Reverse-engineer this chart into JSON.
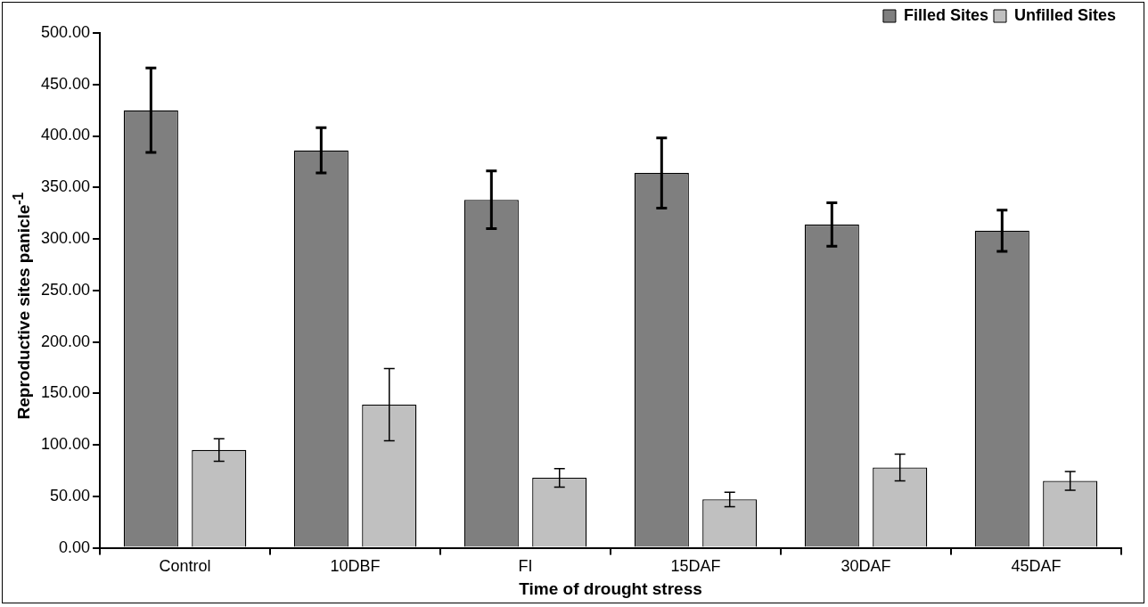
{
  "chart_data": {
    "type": "bar",
    "xlabel": "Time of drought stress",
    "ylabel": "Reproductive sites panicle$^{-1}$",
    "categories": [
      "Control",
      "10DBF",
      "FI",
      "15DAF",
      "30DAF",
      "45DAF"
    ],
    "series": [
      {
        "name": "Filled Sites",
        "color": "#7f7f7f",
        "values": [
          425,
          386,
          338,
          364,
          314,
          308
        ],
        "errors": [
          41,
          22,
          28,
          34,
          21,
          20
        ]
      },
      {
        "name": "Unfilled Sites",
        "color": "#c0c0c0",
        "values": [
          95,
          139,
          68,
          47,
          78,
          65
        ],
        "errors": [
          11,
          35,
          9,
          7,
          13,
          9
        ]
      }
    ],
    "ylim": [
      0,
      500
    ],
    "yticks": [
      {
        "value": 0,
        "label": "0.00"
      },
      {
        "value": 50,
        "label": "50.00"
      },
      {
        "value": 100,
        "label": "100.00"
      },
      {
        "value": 150,
        "label": "150.00"
      },
      {
        "value": 200,
        "label": "200.00"
      },
      {
        "value": 250,
        "label": "250.00"
      },
      {
        "value": 300,
        "label": "300.00"
      },
      {
        "value": 350,
        "label": "350.00"
      },
      {
        "value": 400,
        "label": "400.00"
      },
      {
        "value": 450,
        "label": "450.00"
      },
      {
        "value": 500,
        "label": "500.00"
      }
    ],
    "grid": false,
    "legend": "top right"
  }
}
